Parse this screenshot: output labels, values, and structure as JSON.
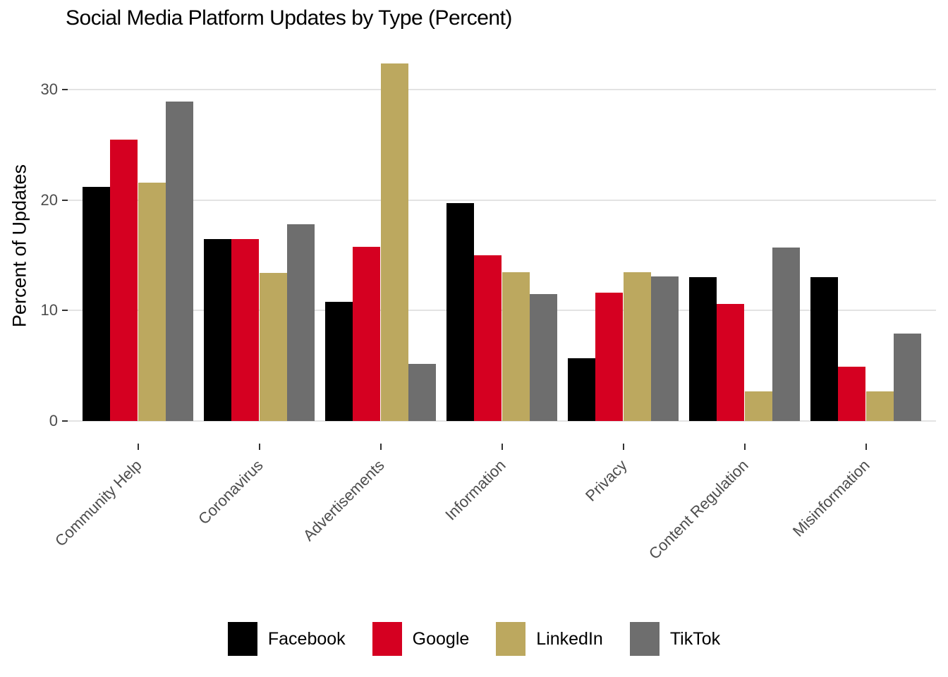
{
  "title": "Social Media Platform Updates by Type (Percent)",
  "chart_data": {
    "type": "bar",
    "title": "Social Media Platform Updates by Type (Percent)",
    "xlabel": "",
    "ylabel": "Percent of Updates",
    "categories": [
      "Community Help",
      "Coronavirus",
      "Advertisements",
      "Information",
      "Privacy",
      "Content Regulation",
      "Misinformation"
    ],
    "series": [
      {
        "name": "Facebook",
        "color": "#000000",
        "values": [
          21.2,
          16.5,
          10.8,
          19.7,
          5.7,
          13.0,
          13.0
        ]
      },
      {
        "name": "Google",
        "color": "#D50021",
        "values": [
          25.5,
          16.5,
          15.8,
          15.0,
          11.6,
          10.6,
          4.9
        ]
      },
      {
        "name": "LinkedIn",
        "color": "#BCA85F",
        "values": [
          21.6,
          13.4,
          32.4,
          13.5,
          13.5,
          2.7,
          2.7
        ]
      },
      {
        "name": "TikTok",
        "color": "#6E6E6E",
        "values": [
          28.9,
          17.8,
          5.2,
          11.5,
          13.1,
          15.7,
          7.9
        ]
      }
    ],
    "y_ticks": [
      0,
      10,
      20,
      30
    ],
    "ylim": [
      0,
      34
    ],
    "grid": "horizontal",
    "legend_position": "bottom",
    "bar_layout": "grouped"
  },
  "colors": {
    "background": "#FFFFFF",
    "gridline": "#E3E3E3",
    "axis_text": "#4D4D4D",
    "tick_mark": "#333333",
    "title_text": "#000000"
  }
}
